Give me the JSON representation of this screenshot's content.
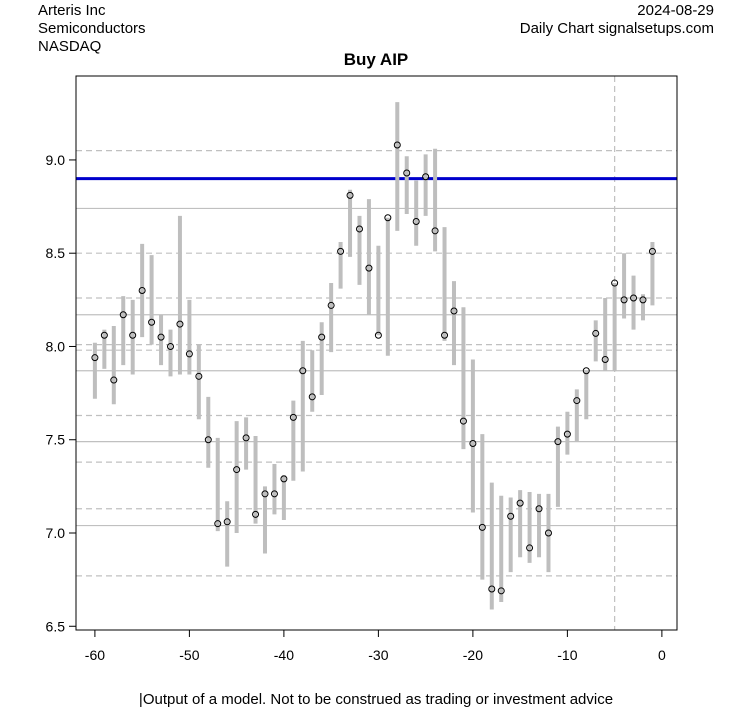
{
  "header": {
    "company": "Arteris Inc",
    "sector": "Semiconductors",
    "exchange": "NASDAQ",
    "date": "2024-08-29",
    "source": "Daily Chart signalsetups.com"
  },
  "chart_data": {
    "type": "range-bar",
    "title": "Buy AIP",
    "footer": "|Output of a model. Not to be construed as trading or investment advice",
    "xlabel": "",
    "ylabel": "",
    "xlim": [
      -62,
      1.6
    ],
    "ylim": [
      6.48,
      9.45
    ],
    "x_ticks": [
      -60,
      -50,
      -40,
      -30,
      -20,
      -10,
      0
    ],
    "x_tick_labels": [
      "-60",
      "-50",
      "-40",
      "-30",
      "-20",
      "-10",
      "0"
    ],
    "y_ticks": [
      6.5,
      7.0,
      7.5,
      8.0,
      8.5,
      9.0
    ],
    "y_tick_labels": [
      "6.5",
      "7.0",
      "7.5",
      "8.0",
      "8.5",
      "9.0"
    ],
    "signal_line": {
      "value": 8.9,
      "color": "#0000CC"
    },
    "solid_levels": [
      8.74,
      8.17,
      7.87,
      7.49,
      7.04
    ],
    "dashed_levels": [
      9.05,
      8.5,
      8.26,
      8.01,
      7.98,
      7.63,
      7.38,
      7.13,
      6.77
    ],
    "vertical_marker": -5,
    "bar_color": "#BEBEBE",
    "x": [
      -60,
      -59,
      -58,
      -57,
      -56,
      -55,
      -54,
      -53,
      -52,
      -51,
      -50,
      -49,
      -48,
      -47,
      -46,
      -45,
      -44,
      -43,
      -42,
      -41,
      -40,
      -39,
      -38,
      -37,
      -36,
      -35,
      -34,
      -33,
      -32,
      -31,
      -30,
      -29,
      -28,
      -27,
      -26,
      -25,
      -24,
      -23,
      -22,
      -21,
      -20,
      -19,
      -18,
      -17,
      -16,
      -15,
      -14,
      -13,
      -12,
      -11,
      -10,
      -9,
      -8,
      -7,
      -6,
      -5,
      -4,
      -3,
      -2,
      -1
    ],
    "close": [
      7.94,
      8.06,
      7.82,
      8.17,
      8.06,
      8.3,
      8.13,
      8.05,
      8.0,
      8.12,
      7.96,
      7.84,
      7.5,
      7.05,
      7.06,
      7.34,
      7.51,
      7.1,
      7.21,
      7.21,
      7.29,
      7.62,
      7.87,
      7.73,
      8.05,
      8.22,
      8.51,
      8.81,
      8.63,
      8.42,
      8.06,
      8.69,
      9.08,
      8.93,
      8.67,
      8.91,
      8.62,
      8.06,
      8.19,
      7.6,
      7.48,
      7.03,
      6.7,
      6.69,
      7.09,
      7.16,
      6.92,
      7.13,
      7.0,
      7.49,
      7.53,
      7.71,
      7.87,
      8.07,
      7.93,
      8.34,
      8.25,
      8.26,
      8.25,
      8.51
    ],
    "low": [
      7.72,
      7.88,
      7.69,
      7.9,
      7.85,
      8.05,
      8.01,
      7.9,
      7.84,
      7.85,
      7.85,
      7.61,
      7.35,
      7.01,
      6.82,
      7.0,
      7.34,
      7.05,
      6.89,
      7.1,
      7.07,
      7.28,
      7.33,
      7.65,
      7.74,
      7.97,
      8.31,
      8.48,
      8.33,
      8.17,
      8.06,
      7.95,
      8.62,
      8.71,
      8.54,
      8.7,
      8.51,
      8.03,
      7.9,
      7.45,
      7.11,
      6.75,
      6.59,
      6.63,
      6.79,
      6.87,
      6.84,
      6.87,
      6.79,
      7.14,
      7.42,
      7.49,
      7.61,
      7.92,
      7.87,
      7.87,
      8.15,
      8.09,
      8.14,
      8.22
    ],
    "high": [
      8.02,
      8.09,
      8.11,
      8.27,
      8.25,
      8.55,
      8.49,
      8.17,
      8.09,
      8.7,
      8.25,
      8.01,
      7.73,
      7.51,
      7.17,
      7.6,
      7.62,
      7.52,
      7.25,
      7.37,
      7.31,
      7.71,
      8.03,
      7.98,
      8.13,
      8.34,
      8.56,
      8.84,
      8.7,
      8.79,
      8.54,
      8.69,
      9.31,
      9.02,
      8.89,
      9.03,
      9.06,
      8.64,
      8.35,
      8.21,
      7.93,
      7.53,
      7.27,
      7.2,
      7.19,
      7.23,
      7.22,
      7.21,
      7.21,
      7.57,
      7.65,
      7.77,
      7.87,
      8.14,
      8.26,
      8.34,
      8.5,
      8.38,
      8.28,
      8.56
    ]
  }
}
